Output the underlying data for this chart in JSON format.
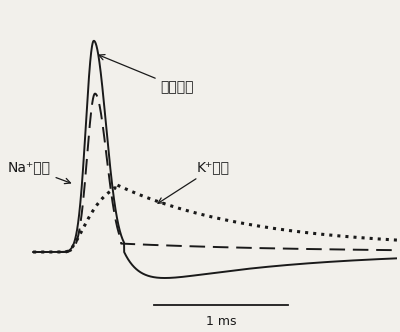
{
  "background_color": "#f2f0eb",
  "label_dongzuo": "动作电位",
  "label_na": "Na⁺电导",
  "label_k": "K⁺电导",
  "scale_label": "1 ms",
  "line_color": "#1a1a1a",
  "figsize": [
    4.0,
    3.32
  ],
  "dpi": 100
}
